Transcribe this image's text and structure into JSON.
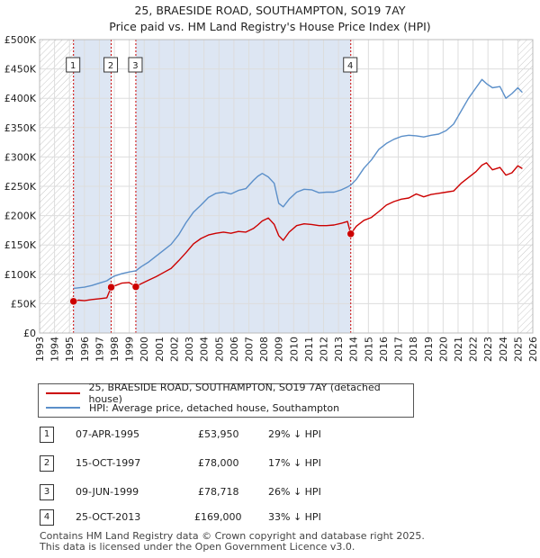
{
  "title_line1": "25, BRAESIDE ROAD, SOUTHAMPTON, SO19 7AY",
  "title_line2": "Price paid vs. HM Land Registry's House Price Index (HPI)",
  "legend": {
    "price_label": "25, BRAESIDE ROAD, SOUTHAMPTON, SO19 7AY (detached house)",
    "hpi_label": "HPI: Average price, detached house, Southampton"
  },
  "colors": {
    "price": "#cc0000",
    "hpi": "#5b8fc9",
    "grid": "#dddddd",
    "shade": "#dde6f3",
    "marker_line": "#cc0000"
  },
  "transactions": [
    {
      "num": "1",
      "date": "07-APR-1995",
      "price": "£53,950",
      "hpi_diff": "29% ↓ HPI"
    },
    {
      "num": "2",
      "date": "15-OCT-1997",
      "price": "£78,000",
      "hpi_diff": "17% ↓ HPI"
    },
    {
      "num": "3",
      "date": "09-JUN-1999",
      "price": "£78,718",
      "hpi_diff": "26% ↓ HPI"
    },
    {
      "num": "4",
      "date": "25-OCT-2013",
      "price": "£169,000",
      "hpi_diff": "33% ↓ HPI"
    }
  ],
  "footer_line1": "Contains HM Land Registry data © Crown copyright and database right 2025.",
  "footer_line2": "This data is licensed under the Open Government Licence v3.0.",
  "chart_data": {
    "type": "line",
    "title": "25, BRAESIDE ROAD, SOUTHAMPTON, SO19 7AY — Price paid vs. HM Land Registry's House Price Index (HPI)",
    "xlabel": "",
    "ylabel": "",
    "xlim": [
      1993,
      2026
    ],
    "ylim": [
      0,
      500000
    ],
    "x_ticks": [
      "1993",
      "1994",
      "1995",
      "1996",
      "1997",
      "1998",
      "1999",
      "2000",
      "2001",
      "2002",
      "2003",
      "2004",
      "2005",
      "2006",
      "2007",
      "2008",
      "2009",
      "2010",
      "2011",
      "2012",
      "2013",
      "2014",
      "2015",
      "2016",
      "2017",
      "2018",
      "2019",
      "2020",
      "2021",
      "2022",
      "2023",
      "2024",
      "2025",
      "2026"
    ],
    "y_ticks": [
      {
        "value": 0,
        "label": "£0"
      },
      {
        "value": 50000,
        "label": "£50K"
      },
      {
        "value": 100000,
        "label": "£100K"
      },
      {
        "value": 150000,
        "label": "£150K"
      },
      {
        "value": 200000,
        "label": "£200K"
      },
      {
        "value": 250000,
        "label": "£250K"
      },
      {
        "value": 300000,
        "label": "£300K"
      },
      {
        "value": 350000,
        "label": "£350K"
      },
      {
        "value": 400000,
        "label": "£400K"
      },
      {
        "value": 450000,
        "label": "£450K"
      },
      {
        "value": 500000,
        "label": "£500K"
      }
    ],
    "shaded_ranges": [
      [
        1995.27,
        1997.79
      ],
      [
        1999.44,
        2013.82
      ]
    ],
    "hatched_regions": [
      [
        1993,
        1995.27
      ],
      [
        2025.0,
        2026
      ]
    ],
    "sale_markers": [
      {
        "label": "1",
        "x": 1995.27,
        "y": 53950
      },
      {
        "label": "2",
        "x": 1997.79,
        "y": 78000
      },
      {
        "label": "3",
        "x": 1999.44,
        "y": 78718
      },
      {
        "label": "4",
        "x": 2013.82,
        "y": 169000
      }
    ],
    "series": [
      {
        "name": "25, BRAESIDE ROAD, SOUTHAMPTON, SO19 7AY (detached house)",
        "x": [
          1995.27,
          1995.6,
          1996.0,
          1996.5,
          1997.0,
          1997.5,
          1997.79,
          1998.0,
          1998.5,
          1999.0,
          1999.44,
          1999.8,
          2000.3,
          2000.8,
          2001.3,
          2001.8,
          2002.3,
          2002.8,
          2003.3,
          2003.8,
          2004.3,
          2004.8,
          2005.3,
          2005.8,
          2006.3,
          2006.8,
          2007.3,
          2007.6,
          2007.9,
          2008.3,
          2008.7,
          2009.0,
          2009.3,
          2009.7,
          2010.2,
          2010.7,
          2011.2,
          2011.7,
          2012.2,
          2012.7,
          2013.2,
          2013.6,
          2013.82,
          2014.2,
          2014.7,
          2015.2,
          2015.7,
          2016.2,
          2016.7,
          2017.2,
          2017.7,
          2018.2,
          2018.7,
          2019.2,
          2019.7,
          2020.2,
          2020.7,
          2021.2,
          2021.7,
          2022.2,
          2022.6,
          2022.9,
          2023.3,
          2023.8,
          2024.2,
          2024.6,
          2025.0,
          2025.3
        ],
        "values": [
          53950,
          56000,
          55000,
          57000,
          58500,
          60000,
          78000,
          80000,
          85000,
          86000,
          78718,
          84000,
          90000,
          96000,
          103000,
          110000,
          123000,
          137000,
          152000,
          161000,
          167000,
          170000,
          172000,
          170000,
          173000,
          172000,
          178000,
          184000,
          191000,
          196000,
          185000,
          166000,
          158000,
          172000,
          183000,
          186000,
          185000,
          183000,
          183000,
          184000,
          187000,
          190000,
          169000,
          182000,
          192000,
          197000,
          207000,
          218000,
          224000,
          228000,
          230000,
          237000,
          232000,
          236000,
          238000,
          240000,
          242000,
          255000,
          265000,
          275000,
          286000,
          290000,
          278000,
          282000,
          269000,
          273000,
          285000,
          280000
        ]
      },
      {
        "name": "HPI: Average price, detached house, Southampton",
        "x": [
          1995.27,
          1995.6,
          1996.0,
          1996.5,
          1997.0,
          1997.5,
          1997.79,
          1998.0,
          1998.5,
          1999.0,
          1999.44,
          1999.8,
          2000.3,
          2000.8,
          2001.3,
          2001.8,
          2002.3,
          2002.8,
          2003.3,
          2003.8,
          2004.3,
          2004.8,
          2005.3,
          2005.8,
          2006.3,
          2006.8,
          2007.3,
          2007.6,
          2007.9,
          2008.3,
          2008.7,
          2009.0,
          2009.3,
          2009.7,
          2010.2,
          2010.7,
          2011.2,
          2011.7,
          2012.2,
          2012.7,
          2013.2,
          2013.6,
          2013.82,
          2014.2,
          2014.7,
          2015.2,
          2015.7,
          2016.2,
          2016.7,
          2017.2,
          2017.7,
          2018.2,
          2018.7,
          2019.2,
          2019.7,
          2020.2,
          2020.7,
          2021.2,
          2021.7,
          2022.2,
          2022.6,
          2022.9,
          2023.3,
          2023.8,
          2024.2,
          2024.6,
          2025.0,
          2025.3
        ],
        "values": [
          76000,
          77000,
          78000,
          81000,
          85000,
          89000,
          94000,
          97000,
          101000,
          104000,
          106000,
          113000,
          121000,
          131000,
          141000,
          151000,
          167000,
          188000,
          206000,
          218000,
          231000,
          238000,
          240000,
          237000,
          243000,
          246000,
          260000,
          267000,
          272000,
          266000,
          255000,
          221000,
          215000,
          228000,
          240000,
          245000,
          244000,
          239000,
          240000,
          240000,
          244000,
          249000,
          252000,
          262000,
          281000,
          295000,
          313000,
          323000,
          330000,
          335000,
          337000,
          336000,
          334000,
          337000,
          339000,
          345000,
          356000,
          378000,
          400000,
          418000,
          432000,
          425000,
          418000,
          420000,
          400000,
          408000,
          418000,
          410000
        ]
      }
    ]
  }
}
